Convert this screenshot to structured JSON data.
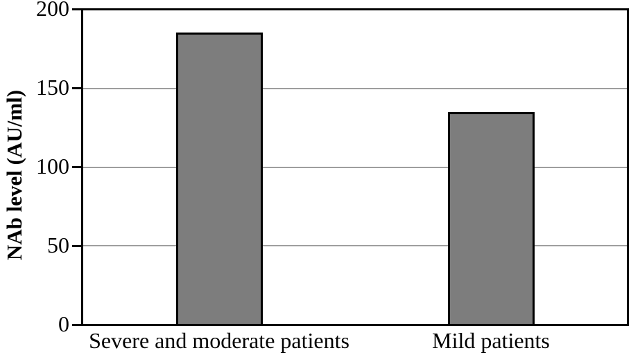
{
  "chart_data": {
    "type": "bar",
    "categories": [
      "Severe and moderate patients",
      "Mild patients"
    ],
    "values": [
      186,
      135
    ],
    "title": "",
    "xlabel": "",
    "ylabel": "NAb level (AU/ml)",
    "ylim": [
      0,
      200
    ],
    "yticks": [
      0,
      50,
      100,
      150,
      200
    ],
    "grid": true,
    "legend": false,
    "bar_color": "#7d7d7d",
    "bar_border_color": "#000000",
    "gridline_color": "#9e9e9e",
    "axis_color": "#000000",
    "text_color": "#000000"
  }
}
